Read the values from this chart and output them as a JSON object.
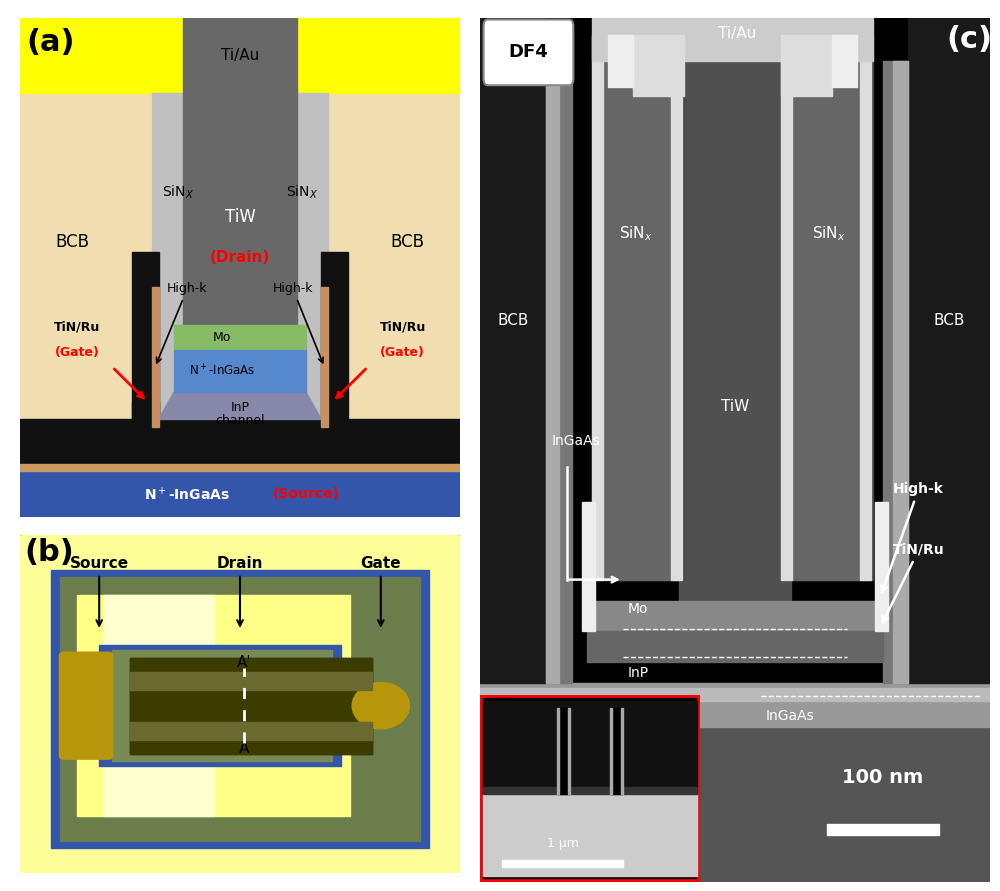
{
  "fig_width": 10.0,
  "fig_height": 8.91,
  "dpi": 100,
  "bg_color": "#ffffff",
  "panel_a": {
    "label": "(a)",
    "label_fontsize": 22,
    "bcb_color": "#f0ddb0",
    "yellow_top_color": "#ffff00",
    "sinx_color": "#b8b8b8",
    "tiw_color": "#686868",
    "highk_color": "#c89060",
    "mo_color": "#88bb66",
    "ingaas_color": "#5588cc",
    "inp_color": "#8888aa",
    "source_blue": "#3355aa",
    "source_border": "#cc9960",
    "black": "#111111"
  },
  "panel_b": {
    "label": "(b)",
    "label_fontsize": 22,
    "yellow_outer": "#ffff99",
    "blue_border": "#3355aa",
    "green_outer": "#6b7d4a",
    "green_inner": "#7a8a55",
    "yellow_inner": "#ffff88",
    "cream": "#ffffd0",
    "black": "#111111",
    "dark_olive": "#3d3c00",
    "olive_stripe": "#6a6a30",
    "gold": "#b8960c"
  },
  "panel_c": {
    "label": "(c)",
    "label_fontsize": 22
  }
}
